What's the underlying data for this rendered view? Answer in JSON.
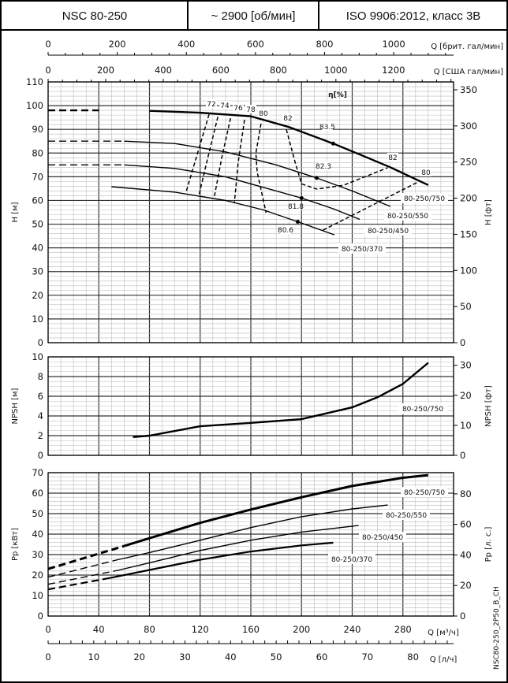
{
  "header": {
    "model": "NSC 80-250",
    "speed": "~ 2900 [об/мин]",
    "standard": "ISO 9906:2012, класс 3В"
  },
  "side_code": "NSC80-250_2P50_B_CH",
  "chart_data": [
    {
      "type": "line",
      "id": "head",
      "xlabel": "Q [м³/ч]",
      "ylabel": "H [м]",
      "ylabel_right": "H [фт]",
      "xlim": [
        0,
        320
      ],
      "ylim": [
        0,
        110
      ],
      "yticks": [
        0,
        10,
        20,
        30,
        40,
        50,
        60,
        70,
        80,
        90,
        100,
        110
      ],
      "yticks_right": [
        0,
        50,
        100,
        150,
        200,
        250,
        300,
        350
      ],
      "grid": true,
      "top_axes": [
        {
          "label": "Q [брит. гал/мин]",
          "ticks": [
            0,
            200,
            400,
            600,
            800,
            1000
          ]
        },
        {
          "label": "Q [США гал/мин]",
          "ticks": [
            0,
            200,
            400,
            600,
            800,
            1000,
            1200
          ]
        }
      ],
      "efficiency_title": "η[%]",
      "series": [
        {
          "name": "80-250/750",
          "dashed_until": 60,
          "points": [
            [
              0,
              98
            ],
            [
              40,
              98
            ],
            [
              80,
              97.8
            ],
            [
              120,
              97
            ],
            [
              160,
              95.5
            ],
            [
              190,
              91
            ],
            [
              225,
              84
            ],
            [
              250,
              78.5
            ],
            [
              270,
              74
            ],
            [
              300,
              66.5
            ]
          ]
        },
        {
          "name": "80-250/550",
          "dashed_until": 60,
          "points": [
            [
              0,
              85
            ],
            [
              60,
              85
            ],
            [
              100,
              84
            ],
            [
              140,
              80.5
            ],
            [
              180,
              75
            ],
            [
              212,
              69.5
            ],
            [
              240,
              64
            ],
            [
              270,
              57.5
            ]
          ]
        },
        {
          "name": "80-250/450",
          "dashed_until": 60,
          "points": [
            [
              0,
              75
            ],
            [
              60,
              75
            ],
            [
              100,
              73.5
            ],
            [
              140,
              70
            ],
            [
              170,
              65.5
            ],
            [
              200,
              61
            ],
            [
              225,
              56.5
            ],
            [
              246,
              52
            ]
          ]
        },
        {
          "name": "80-250/370",
          "dashed_until": 45,
          "points": [
            [
              0,
              66
            ],
            [
              50,
              65.8
            ],
            [
              100,
              63.5
            ],
            [
              140,
              60
            ],
            [
              170,
              56
            ],
            [
              197,
              51
            ],
            [
              226,
              45.5
            ]
          ]
        }
      ],
      "efficiency_curves": [
        {
          "label": "72",
          "points": [
            [
              127,
              96.3
            ],
            [
              118,
              80
            ],
            [
              109,
              63.8
            ]
          ]
        },
        {
          "label": "74",
          "points": [
            [
              134,
              95.3
            ],
            [
              126,
              78
            ],
            [
              119,
              62
            ]
          ]
        },
        {
          "label": "76",
          "points": [
            [
              144,
              94.7
            ],
            [
              137,
              78
            ],
            [
              131,
              61
            ]
          ]
        },
        {
          "label": "78",
          "points": [
            [
              155,
              94
            ],
            [
              150,
              76
            ],
            [
              147,
              58.8
            ]
          ]
        },
        {
          "label": "80",
          "points": [
            [
              168,
              92.4
            ],
            [
              164,
              80
            ],
            [
              165,
              72
            ],
            [
              172,
              54.8
            ]
          ]
        },
        {
          "label": "82",
          "points": [
            [
              188,
              90
            ],
            [
              195,
              76
            ],
            [
              200,
              67
            ],
            [
              212,
              64.8
            ],
            [
              233,
              66.4
            ],
            [
              268,
              73.8
            ]
          ]
        },
        {
          "label": "80",
          "points": [
            [
              217,
              47.5
            ],
            [
              292,
              67.8
            ]
          ]
        }
      ],
      "efficiency_labels": [
        "72",
        "74",
        "76",
        "78",
        "80",
        "82",
        "83.5",
        "82",
        "80",
        "82.3",
        "81.8",
        "80.6"
      ],
      "bep_points": [
        {
          "label": "83.5",
          "q": 225,
          "h": 84
        },
        {
          "label": "82.3",
          "q": 212,
          "h": 69.5
        },
        {
          "label": "81.8",
          "q": 200,
          "h": 61
        },
        {
          "label": "80.6",
          "q": 197,
          "h": 51
        }
      ]
    },
    {
      "type": "line",
      "id": "npsh",
      "ylabel": "NPSH [м]",
      "ylabel_right": "NPSH [фт]",
      "xlim": [
        0,
        320
      ],
      "ylim": [
        0,
        10
      ],
      "yticks": [
        0,
        2,
        4,
        6,
        8,
        10
      ],
      "yticks_right": [
        0,
        10,
        20,
        30
      ],
      "grid": true,
      "series": [
        {
          "name": "80-250/750",
          "points": [
            [
              67,
              1.86
            ],
            [
              80,
              2.0
            ],
            [
              120,
              2.95
            ],
            [
              160,
              3.3
            ],
            [
              200,
              3.67
            ],
            [
              240,
              4.87
            ],
            [
              260,
              5.9
            ],
            [
              280,
              7.26
            ],
            [
              300,
              9.4
            ]
          ]
        }
      ]
    },
    {
      "type": "line",
      "id": "power",
      "ylabel": "Pp [кВт]",
      "ylabel_right": "Pp [л. с.]",
      "xlabel": "Q [м³/ч]",
      "xlabel2": "Q [л/ч]",
      "xlim": [
        0,
        320
      ],
      "ylim": [
        0,
        70
      ],
      "xticks": [
        0,
        40,
        80,
        120,
        160,
        200,
        240,
        280
      ],
      "xticks2": [
        0,
        10,
        20,
        30,
        40,
        50,
        60,
        70,
        80
      ],
      "yticks": [
        0,
        10,
        20,
        30,
        40,
        50,
        60,
        70
      ],
      "yticks_right": [
        0,
        20,
        40,
        60,
        80
      ],
      "grid": true,
      "series": [
        {
          "name": "80-250/750",
          "dashed_until": 60,
          "points": [
            [
              0,
              23
            ],
            [
              60,
              34.2
            ],
            [
              80,
              38
            ],
            [
              120,
              45.5
            ],
            [
              160,
              52
            ],
            [
              200,
              58
            ],
            [
              240,
              63.5
            ],
            [
              280,
              67.5
            ],
            [
              300,
              68.8
            ]
          ]
        },
        {
          "name": "80-250/550",
          "dashed_until": 55,
          "points": [
            [
              0,
              19
            ],
            [
              55,
              27.5
            ],
            [
              80,
              31
            ],
            [
              120,
              37
            ],
            [
              160,
              43.2
            ],
            [
              200,
              48.5
            ],
            [
              240,
              52.3
            ],
            [
              268,
              54.2
            ]
          ]
        },
        {
          "name": "80-250/450",
          "dashed_until": 55,
          "points": [
            [
              0,
              15.5
            ],
            [
              55,
              22.3
            ],
            [
              80,
              26
            ],
            [
              120,
              32
            ],
            [
              160,
              37
            ],
            [
              200,
              41
            ],
            [
              245,
              44.2
            ]
          ]
        },
        {
          "name": "80-250/370",
          "dashed_until": 48,
          "points": [
            [
              0,
              13
            ],
            [
              48,
              18.5
            ],
            [
              80,
              22.5
            ],
            [
              120,
              27.5
            ],
            [
              160,
              31.5
            ],
            [
              200,
              34.5
            ],
            [
              225,
              35.8
            ]
          ]
        }
      ]
    }
  ]
}
